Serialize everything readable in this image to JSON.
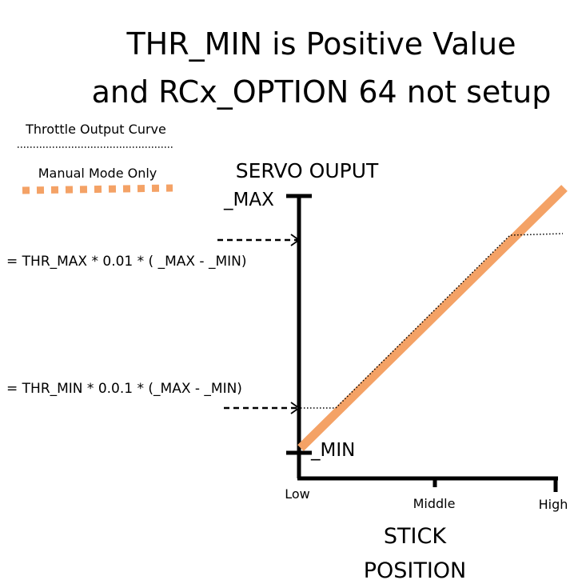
{
  "title": {
    "line1": "THR_MIN is Positive Value",
    "line2": "and RCx_OPTION 64 not setup"
  },
  "legend": {
    "items": [
      {
        "label": "Throttle Output Curve",
        "line_style": "dotted",
        "color": "#000000"
      },
      {
        "label": "Manual Mode Only",
        "line_style": "thick-dashed",
        "color": "#f4a266"
      }
    ]
  },
  "axes": {
    "y_title": "SERVO OUPUT",
    "y_max_label": "_MAX",
    "y_min_label": "_MIN",
    "x_title_line1": "STICK",
    "x_title_line2": "POSITION",
    "x_ticks": [
      "Low",
      "Middle",
      "High"
    ]
  },
  "annotations": {
    "thr_max_formula": "= THR_MAX * 0.01 * ( _MAX - _MIN)",
    "thr_min_formula": "= THR_MIN * 0.0.1 * (_MAX - _MIN)"
  },
  "colors": {
    "manual_line": "#f4a266",
    "axis": "#000000"
  }
}
